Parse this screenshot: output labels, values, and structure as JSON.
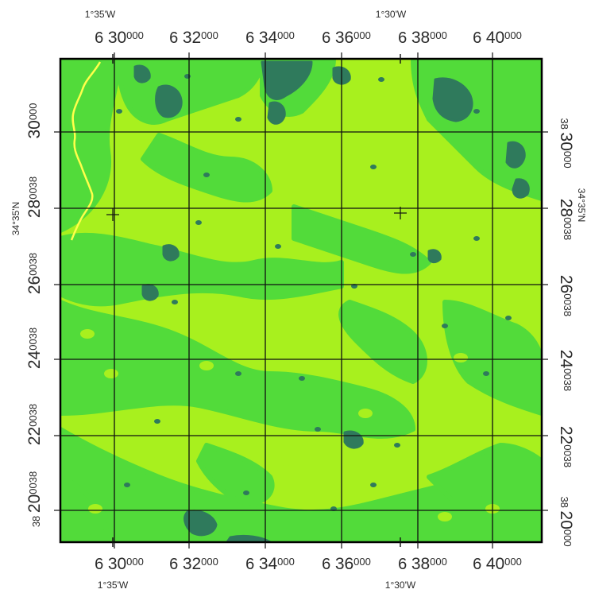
{
  "map": {
    "colors": {
      "background": "#ffffff",
      "land_light": "#a8f01e",
      "land_medium": "#52db3a",
      "land_dark": "#2f7a5c",
      "river": "#ffff4a",
      "grid": "#101010",
      "frame": "#000000"
    },
    "x_labels": [
      {
        "prefix": "6",
        "big": "30",
        "small": "000"
      },
      {
        "prefix": "6",
        "big": "32",
        "small": "000"
      },
      {
        "prefix": "6",
        "big": "34",
        "small": "000"
      },
      {
        "prefix": "6",
        "big": "36",
        "small": "000"
      },
      {
        "prefix": "6",
        "big": "38",
        "small": "000"
      },
      {
        "prefix": "6",
        "big": "40",
        "small": "000"
      }
    ],
    "bottom_x_labels": [
      {
        "prefix": "6",
        "big": "30",
        "small": "000"
      },
      {
        "prefix": "6",
        "big": "32",
        "small": "000"
      },
      {
        "prefix": "6",
        "big": "34",
        "small": "000"
      },
      {
        "prefix": "6",
        "big": "36",
        "small": "000"
      },
      {
        "prefix": "6",
        "big": "38",
        "small": "000"
      },
      {
        "prefix": "6",
        "big": "40",
        "small": "000"
      }
    ],
    "y_labels_left": [
      {
        "big": "30",
        "small": "000"
      },
      {
        "big": "28",
        "small": "0038"
      },
      {
        "big": "26",
        "small": "0038"
      },
      {
        "big": "24",
        "small": "0038"
      },
      {
        "big": "22",
        "small": "0038"
      },
      {
        "big": "20",
        "small": "0038"
      }
    ],
    "y_labels_right": [
      {
        "big": "30",
        "small": "000",
        "prefix": "38"
      },
      {
        "big": "28",
        "small": "0038"
      },
      {
        "big": "26",
        "small": "0038"
      },
      {
        "big": "24",
        "small": "0038"
      },
      {
        "big": "22",
        "small": "0038"
      },
      {
        "big": "20",
        "small": "000",
        "prefix": "38"
      }
    ],
    "left_prefix_20": "38",
    "lon_top_left": "1°35'W",
    "lon_top_right": "1°30'W",
    "lon_bottom_left": "1°35'W",
    "lon_bottom_right": "1°30'W",
    "lat_left": "34°35'N",
    "lat_right": "34°35'N"
  }
}
